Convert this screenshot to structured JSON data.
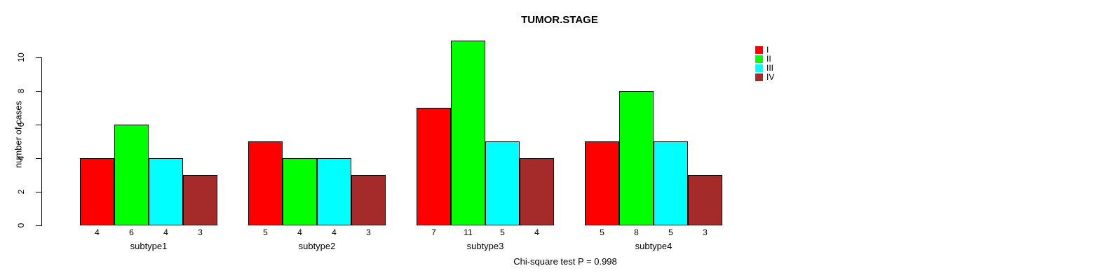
{
  "chart_data": {
    "type": "bar",
    "title": "TUMOR.STAGE",
    "xlabel": "",
    "ylabel": "number of cases",
    "categories": [
      "subtype1",
      "subtype2",
      "subtype3",
      "subtype4"
    ],
    "series": [
      {
        "name": "I",
        "color": "#FF0000",
        "values": [
          4,
          5,
          7,
          5
        ]
      },
      {
        "name": "II",
        "color": "#00FF00",
        "values": [
          6,
          4,
          11,
          8
        ]
      },
      {
        "name": "III",
        "color": "#00FFFF",
        "values": [
          4,
          4,
          5,
          5
        ]
      },
      {
        "name": "IV",
        "color": "#A52A2A",
        "values": [
          3,
          3,
          4,
          3
        ]
      }
    ],
    "bar_labels": [
      [
        4,
        5,
        7,
        5
      ],
      [
        6,
        4,
        11,
        8
      ],
      [
        4,
        4,
        5,
        5
      ],
      [
        3,
        3,
        4,
        3
      ]
    ],
    "yticks": [
      0,
      2,
      4,
      6,
      8,
      10
    ],
    "ylim": [
      0,
      11
    ],
    "grid": false,
    "legend_position": "top-right",
    "legend_entries": [
      "I",
      "II",
      "III",
      "IV"
    ],
    "annotation": "Chi-square test P = 0.998"
  }
}
